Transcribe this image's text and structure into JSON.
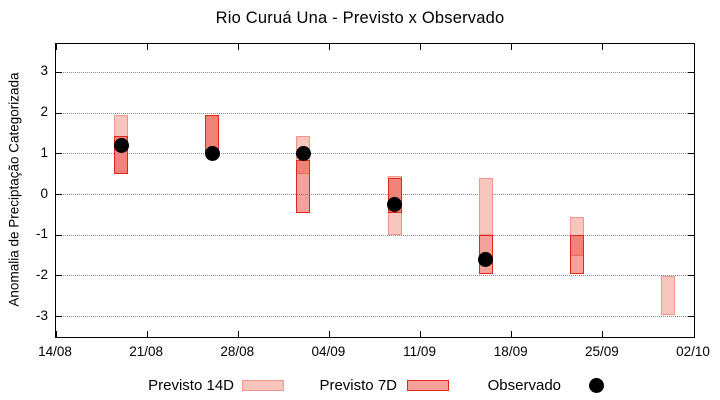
{
  "title": "Rio Curuá Una - Previsto x Observado",
  "axes": {
    "ylabel": "Anomalia de Preciptação Categorizada",
    "y_ticks": [
      3,
      2,
      1,
      0,
      -1,
      -2,
      -3
    ],
    "ylim": [
      -3.5,
      3.7
    ],
    "x_ticks": [
      {
        "label": "14/08",
        "day": 0
      },
      {
        "label": "21/08",
        "day": 7
      },
      {
        "label": "28/08",
        "day": 14
      },
      {
        "label": "04/09",
        "day": 21
      },
      {
        "label": "11/09",
        "day": 28
      },
      {
        "label": "18/09",
        "day": 35
      },
      {
        "label": "25/09",
        "day": 42
      },
      {
        "label": "02/10",
        "day": 49
      }
    ],
    "xlim_days": [
      0,
      49
    ],
    "grid": "horizontal-dotted"
  },
  "chart_data": {
    "type": "bar",
    "subtype": "forecast-range-boxes-with-observed-dots",
    "title": "Rio Curuá Una - Previsto x Observado",
    "xlabel": "",
    "ylabel": "Anomalia de Preciptação Categorizada",
    "groups": [
      {
        "date": "19/08",
        "day": 5,
        "previsto14d": [
          0.5,
          1.95
        ],
        "previsto7d": [
          0.5,
          1.45
        ],
        "observado": 1.2
      },
      {
        "date": "26/08",
        "day": 12,
        "previsto14d": [
          1.0,
          1.95
        ],
        "previsto7d": [
          1.0,
          1.95
        ],
        "observado": 1.0
      },
      {
        "date": "02/09",
        "day": 19,
        "previsto14d": [
          0.5,
          1.45
        ],
        "previsto7d": [
          -0.45,
          0.85
        ],
        "observado": 1.0
      },
      {
        "date": "09/09",
        "day": 26,
        "previsto14d": [
          -1.0,
          0.45
        ],
        "previsto7d": [
          -0.45,
          0.4
        ],
        "observado": -0.25
      },
      {
        "date": "16/09",
        "day": 33,
        "previsto14d": [
          -1.0,
          0.4
        ],
        "previsto7d": [
          -1.95,
          -1.0
        ],
        "observado": -1.6
      },
      {
        "date": "23/09",
        "day": 40,
        "previsto14d": [
          -1.5,
          -0.55
        ],
        "previsto7d": [
          -1.95,
          -1.0
        ],
        "observado": null
      },
      {
        "date": "30/09",
        "day": 47,
        "previsto14d": [
          -2.95,
          -2.0
        ],
        "previsto7d": null,
        "observado": null
      }
    ]
  },
  "legend": {
    "items": [
      {
        "label": "Previsto 14D",
        "swatch": "box-light"
      },
      {
        "label": "Previsto 7D",
        "swatch": "box-dark"
      },
      {
        "label": "Observado",
        "swatch": "dot"
      }
    ]
  },
  "colors": {
    "previsto14d_fill": "#f9c6be",
    "previsto14d_border": "#f0968c",
    "previsto7d_fill": "rgba(232,48,38,0.45)",
    "previsto7d_border": "#e3261a",
    "observado": "#000000",
    "gridline": "#8a8a8a",
    "axis_frame": "#000000",
    "background": "#ffffff"
  }
}
